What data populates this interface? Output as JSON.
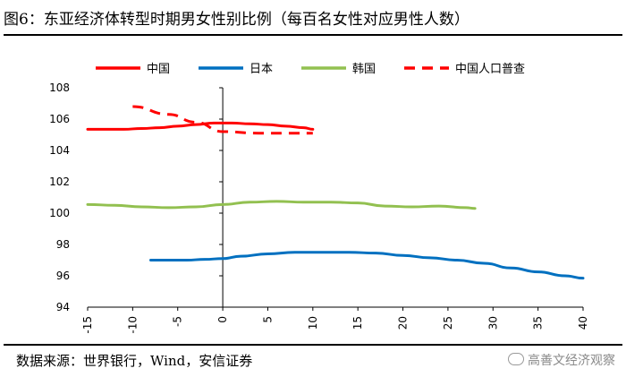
{
  "title": "图6：东亚经济体转型时期男女性别比例（每百名女性对应男性人数）",
  "source": "数据来源：世界银行，Wind，安信证券",
  "watermark": "高善文经济观察",
  "chart_data": {
    "type": "line",
    "xlim": [
      -15,
      40
    ],
    "ylim": [
      94,
      108
    ],
    "x_ticks": [
      -15,
      -10,
      -5,
      0,
      5,
      10,
      15,
      20,
      25,
      30,
      35,
      40
    ],
    "y_ticks": [
      94,
      96,
      98,
      100,
      102,
      104,
      106,
      108
    ],
    "legend_position": "top",
    "series": [
      {
        "name": "中国",
        "color": "#ff0000",
        "style": "solid",
        "x": [
          -15,
          -13,
          -11,
          -9,
          -7,
          -5,
          -3,
          -1,
          0,
          1,
          3,
          5,
          7,
          9,
          10
        ],
        "y": [
          105.35,
          105.35,
          105.35,
          105.4,
          105.45,
          105.55,
          105.65,
          105.75,
          105.75,
          105.75,
          105.7,
          105.65,
          105.55,
          105.45,
          105.35
        ]
      },
      {
        "name": "日本",
        "color": "#0070c0",
        "style": "solid",
        "x": [
          -8,
          -4,
          -2,
          0,
          2,
          5,
          8,
          11,
          14,
          17,
          20,
          23,
          26,
          29,
          32,
          35,
          38,
          40
        ],
        "y": [
          97.0,
          97.0,
          97.05,
          97.1,
          97.25,
          97.4,
          97.5,
          97.5,
          97.5,
          97.45,
          97.3,
          97.15,
          97.0,
          96.8,
          96.5,
          96.25,
          96.0,
          95.85
        ]
      },
      {
        "name": "韩国",
        "color": "#92c050",
        "style": "solid",
        "x": [
          -15,
          -12,
          -9,
          -6,
          -3,
          0,
          3,
          6,
          9,
          12,
          15,
          18,
          21,
          24,
          27,
          28
        ],
        "y": [
          100.55,
          100.5,
          100.4,
          100.35,
          100.4,
          100.55,
          100.7,
          100.75,
          100.7,
          100.7,
          100.65,
          100.45,
          100.4,
          100.45,
          100.35,
          100.3
        ]
      },
      {
        "name": "中国人口普查",
        "color": "#ff0000",
        "style": "dashed",
        "x": [
          -10,
          -6,
          -3,
          0,
          4,
          8,
          10
        ],
        "y": [
          106.8,
          106.3,
          105.8,
          105.2,
          105.1,
          105.1,
          105.1
        ]
      }
    ]
  }
}
